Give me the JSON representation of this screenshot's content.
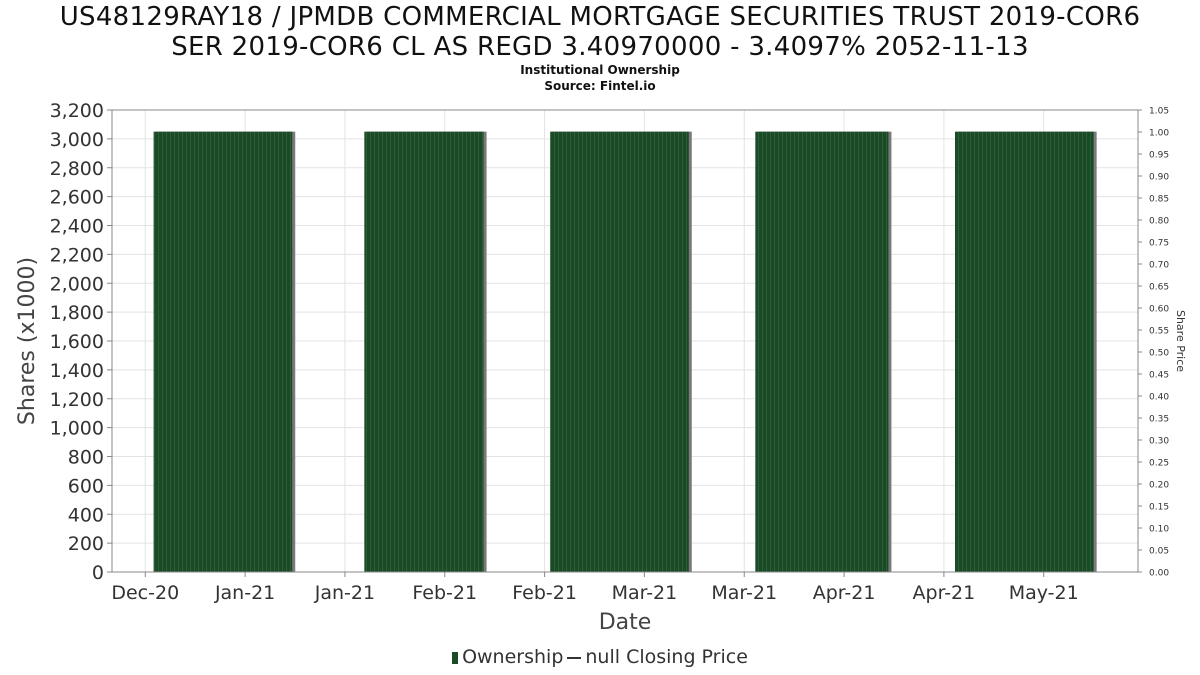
{
  "chart_data": {
    "type": "bar",
    "title_lines": [
      "US48129RAY18 / JPMDB COMMERCIAL MORTGAGE SECURITIES TRUST 2019-COR6",
      "SER 2019-COR6 CL AS REGD 3.40970000 - 3.4097% 2052-11-13"
    ],
    "subtitle": "Institutional Ownership",
    "source": "Source: Fintel.io",
    "xlabel": "Date",
    "ylabel": "Shares (x1000)",
    "ylabel_right": "Share Price",
    "ylim": [
      0,
      3200
    ],
    "ylim_right": [
      0,
      1.05
    ],
    "yticks": [
      0,
      200,
      400,
      600,
      800,
      1000,
      1200,
      1400,
      1600,
      1800,
      2000,
      2200,
      2400,
      2600,
      2800,
      3000,
      3200
    ],
    "yticks_labels": [
      "0",
      "200",
      "400",
      "600",
      "800",
      "1,000",
      "1,200",
      "1,400",
      "1,600",
      "1,800",
      "2,000",
      "2,200",
      "2,400",
      "2,600",
      "2,800",
      "3,000",
      "3,200"
    ],
    "yticks_right": [
      "0.00",
      "0.05",
      "0.10",
      "0.15",
      "0.20",
      "0.25",
      "0.30",
      "0.35",
      "0.40",
      "0.45",
      "0.50",
      "0.55",
      "0.60",
      "0.65",
      "0.70",
      "0.75",
      "0.80",
      "0.85",
      "0.90",
      "0.95",
      "1.00",
      "1.05"
    ],
    "xticks": [
      "Dec-20",
      "Jan-21",
      "Jan-21",
      "Feb-21",
      "Feb-21",
      "Mar-21",
      "Mar-21",
      "Apr-21",
      "Apr-21",
      "May-21"
    ],
    "x_range_days": [
      0,
      185
    ],
    "xtick_days": [
      6,
      24,
      42,
      60,
      78,
      96,
      114,
      132,
      150,
      168
    ],
    "bars": [
      {
        "start_day": 7.5,
        "end_day": 32.5,
        "value": 3050
      },
      {
        "start_day": 45.5,
        "end_day": 67,
        "value": 3050
      },
      {
        "start_day": 79,
        "end_day": 104,
        "value": 3050
      },
      {
        "start_day": 116,
        "end_day": 140,
        "value": 3050
      },
      {
        "start_day": 152,
        "end_day": 177,
        "value": 3050
      }
    ],
    "series": [
      {
        "name": "Ownership",
        "type": "bar"
      },
      {
        "name": "null Closing Price",
        "type": "line",
        "values": []
      }
    ],
    "colors": {
      "bar": "#1b4a26",
      "bar_stripe": "#2a5e35",
      "shadow": "#7a7a7a",
      "grid": "#e3e3e3",
      "axis": "#888888"
    },
    "legend": [
      "Ownership",
      "null Closing Price"
    ],
    "legend_position": "bottom-center",
    "grid": true
  }
}
